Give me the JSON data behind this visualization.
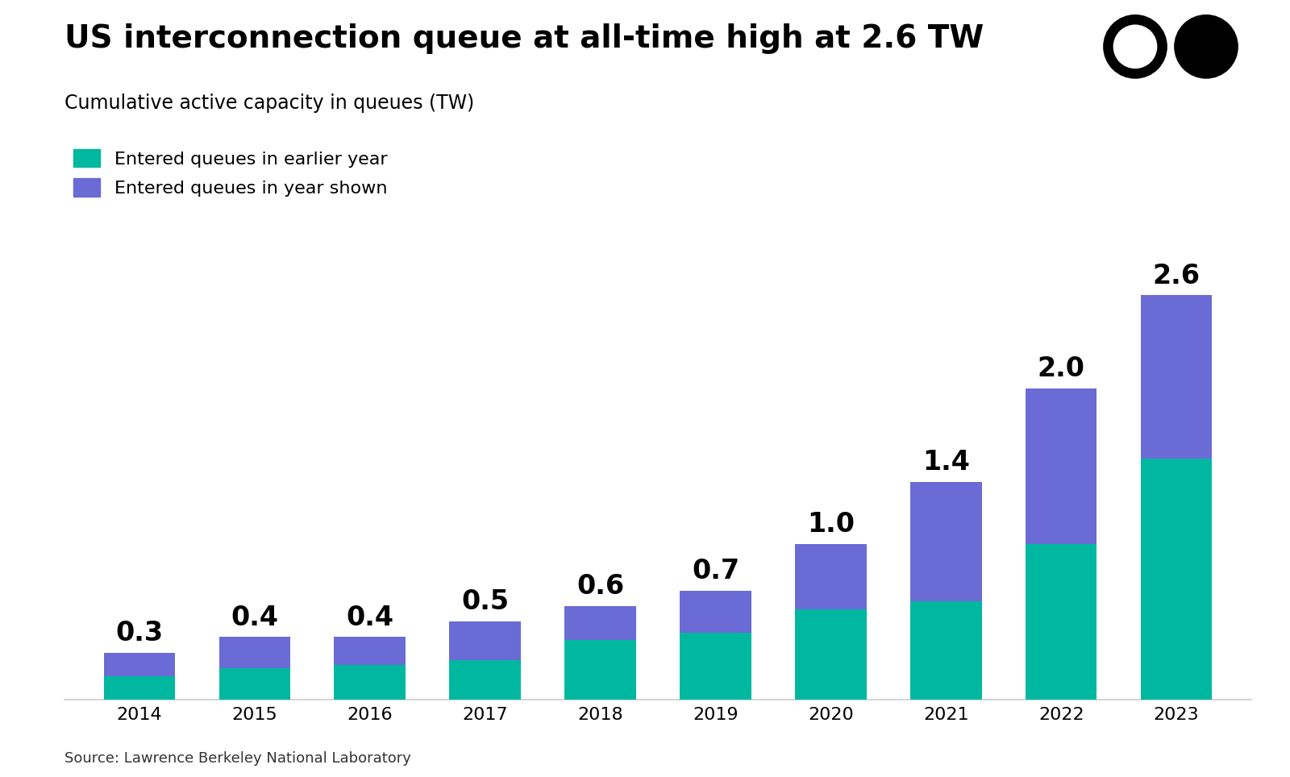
{
  "title": "US interconnection queue at all-time high at 2.6 TW",
  "subtitle": "Cumulative active capacity in queues (TW)",
  "source": "Source: Lawrence Berkeley National Laboratory",
  "years": [
    "2014",
    "2015",
    "2016",
    "2017",
    "2018",
    "2019",
    "2020",
    "2021",
    "2022",
    "2023"
  ],
  "teal_values": [
    0.15,
    0.2,
    0.22,
    0.25,
    0.38,
    0.43,
    0.58,
    0.63,
    1.0,
    1.55
  ],
  "purple_values": [
    0.15,
    0.2,
    0.18,
    0.25,
    0.22,
    0.27,
    0.42,
    0.77,
    1.0,
    1.05
  ],
  "totals": [
    "0.3",
    "0.4",
    "0.4",
    "0.5",
    "0.6",
    "0.7",
    "1.0",
    "1.4",
    "2.0",
    "2.6"
  ],
  "teal_color": "#00B8A0",
  "purple_color": "#6B6BD6",
  "background_color": "#FFFFFF",
  "title_fontsize": 28,
  "subtitle_fontsize": 17,
  "label_fontsize": 24,
  "tick_fontsize": 16,
  "source_fontsize": 13,
  "legend_fontsize": 16,
  "legend_label_teal": "Entered queues in earlier year",
  "legend_label_purple": "Entered queues in year shown",
  "bar_width": 0.62
}
